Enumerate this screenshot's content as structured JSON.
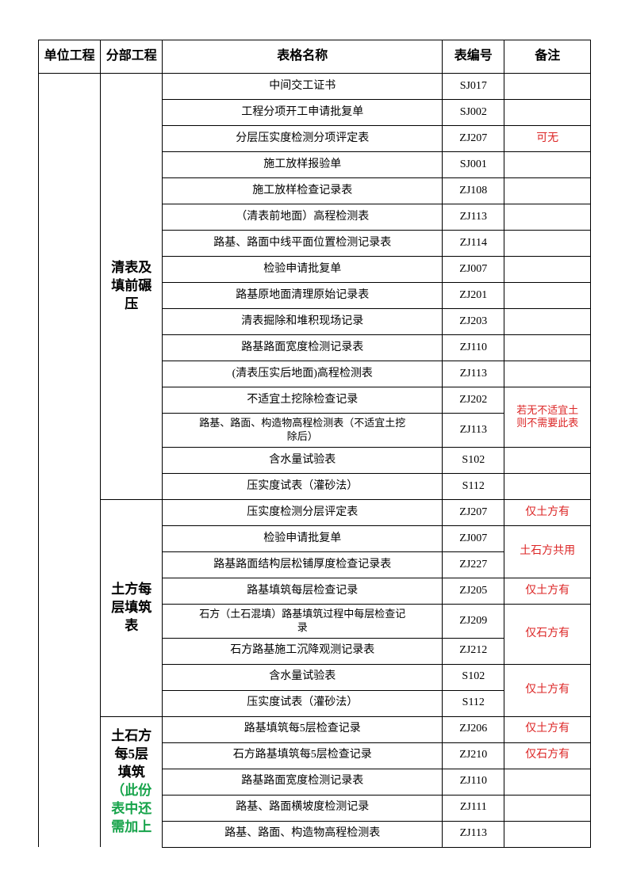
{
  "headers": {
    "unit": "单位工程",
    "section": "分部工程",
    "formName": "表格名称",
    "formNo": "表编号",
    "remark": "备注"
  },
  "sections": {
    "s1": "清表及\n填前碾\n压",
    "s2": "土方每\n层填筑\n表",
    "s3a": "土石方\n每5层\n填筑",
    "s3b": "（此份\n表中还\n需加上"
  },
  "rows": [
    {
      "name": "中间交工证书",
      "no": "SJ017",
      "remark": ""
    },
    {
      "name": "工程分项开工申请批复单",
      "no": "SJ002",
      "remark": ""
    },
    {
      "name": "分层压实度检测分项评定表",
      "no": "ZJ207",
      "remark": "可无",
      "remarkClass": "red"
    },
    {
      "name": "施工放样报验单",
      "no": "SJ001",
      "remark": ""
    },
    {
      "name": "施工放样检查记录表",
      "no": "ZJ108",
      "remark": ""
    },
    {
      "name": "（清表前地面）高程检测表",
      "no": "ZJ113",
      "remark": ""
    },
    {
      "name": "路基、路面中线平面位置检测记录表",
      "no": "ZJ114",
      "remark": ""
    },
    {
      "name": "检验申请批复单",
      "no": "ZJ007",
      "remark": ""
    },
    {
      "name": "路基原地面清理原始记录表",
      "no": "ZJ201",
      "remark": ""
    },
    {
      "name": "清表掘除和堆积现场记录",
      "no": "ZJ203",
      "remark": ""
    },
    {
      "name": "路基路面宽度检测记录表",
      "no": "ZJ110",
      "remark": ""
    },
    {
      "name": "(清表压实后地面)高程检测表",
      "no": "ZJ113",
      "remark": ""
    },
    {
      "name": "不适宜土挖除检查记录",
      "no": "ZJ202"
    },
    {
      "name": "路基、路面、构造物高程检测表（不适宜土挖\n除后）",
      "no": "ZJ113"
    },
    {
      "name": "含水量试验表",
      "no": "S102",
      "remark": ""
    },
    {
      "name": "压实度试表（灌砂法）",
      "no": "S112",
      "remark": ""
    },
    {
      "name": "压实度检测分层评定表",
      "no": "ZJ207",
      "remark": "仅土方有",
      "remarkClass": "red"
    },
    {
      "name": "检验申请批复单",
      "no": "ZJ007"
    },
    {
      "name": "路基路面结构层松铺厚度检查记录表",
      "no": "ZJ227"
    },
    {
      "name": "路基填筑每层检查记录",
      "no": "ZJ205",
      "remark": "仅土方有",
      "remarkClass": "red"
    },
    {
      "name": "石方（土石混填）路基填筑过程中每层检查记\n录",
      "no": "ZJ209"
    },
    {
      "name": "石方路基施工沉降观测记录表",
      "no": "ZJ212"
    },
    {
      "name": "含水量试验表",
      "no": "S102"
    },
    {
      "name": "压实度试表（灌砂法）",
      "no": "S112"
    },
    {
      "name": "路基填筑每5层检查记录",
      "no": "ZJ206",
      "remark": "仅土方有",
      "remarkClass": "red"
    },
    {
      "name": "石方路基填筑每5层检查记录",
      "no": "ZJ210",
      "remark": "仅石方有",
      "remarkClass": "red"
    },
    {
      "name": "路基路面宽度检测记录表",
      "no": "ZJ110",
      "remark": ""
    },
    {
      "name": "路基、路面横坡度检测记录",
      "no": "ZJ111",
      "remark": ""
    },
    {
      "name": "路基、路面、构造物高程检测表",
      "no": "ZJ113",
      "remark": ""
    }
  ],
  "mergedRemarks": {
    "r13": "若无不适宜土\n则不需要此表",
    "r18": "土石方共用",
    "r21": "仅石方有",
    "r23": "仅土方有"
  }
}
